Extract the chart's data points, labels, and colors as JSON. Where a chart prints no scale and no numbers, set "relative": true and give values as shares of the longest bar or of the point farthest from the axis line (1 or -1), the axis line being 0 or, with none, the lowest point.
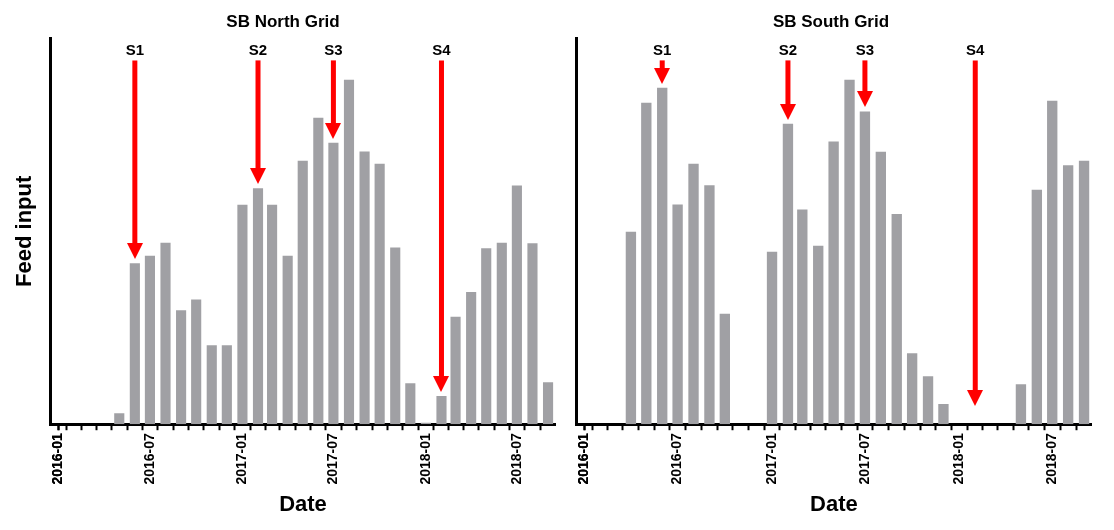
{
  "chart_data": [
    {
      "type": "bar",
      "title": "SB North Grid",
      "xlabel": "Date",
      "ylabel": "Feed input",
      "relative": true,
      "xlim": [
        "2015-12-16",
        "2018-09-16"
      ],
      "xticks": [
        "2016-01",
        "2016-07",
        "2017-01",
        "2017-07",
        "2018-01",
        "2018-07"
      ],
      "x": [
        "2016-05",
        "2016-06",
        "2016-07",
        "2016-08",
        "2016-09",
        "2016-10",
        "2016-11",
        "2016-12",
        "2017-01",
        "2017-02",
        "2017-03",
        "2017-04",
        "2017-05",
        "2017-06",
        "2017-07",
        "2017-08",
        "2017-09",
        "2017-10",
        "2017-11",
        "2017-12",
        "2018-01",
        "2018-02",
        "2018-03",
        "2018-04",
        "2018-05",
        "2018-06",
        "2018-07",
        "2018-08",
        "2018-09"
      ],
      "series": [
        {
          "color": "#a0a0a4",
          "values": [
            0.032,
            0.467,
            0.489,
            0.527,
            0.331,
            0.362,
            0.229,
            0.229,
            0.637,
            0.685,
            0.637,
            0.489,
            0.765,
            0.89,
            0.817,
            1,
            0.792,
            0.756,
            0.513,
            0.119,
            0.004,
            0.082,
            0.312,
            0.384,
            0.511,
            0.527,
            0.693,
            0.525,
            0.122
          ]
        }
      ],
      "ref_lines": [
        {
          "axis": "x",
          "value": "2016-06",
          "label": "S1",
          "color": "#ff0000"
        },
        {
          "axis": "x",
          "value": "2017-02",
          "label": "S2",
          "color": "#ff0000"
        },
        {
          "axis": "x",
          "value": "2017-07",
          "label": "S3",
          "color": "#ff0000"
        },
        {
          "axis": "x",
          "value": "2018-02",
          "label": "S4",
          "color": "#ff0000"
        }
      ]
    },
    {
      "type": "bar",
      "title": "SB South Grid",
      "xlabel": "Date",
      "relative": true,
      "xlim": [
        "2015-12-16",
        "2018-09-16"
      ],
      "xticks": [
        "2016-01",
        "2016-07",
        "2017-01",
        "2017-07",
        "2018-01",
        "2018-07"
      ],
      "x": [
        "2016-04",
        "2016-05",
        "2016-06",
        "2016-07",
        "2016-08",
        "2016-09",
        "2016-10",
        "2017-01",
        "2017-02",
        "2017-03",
        "2017-04",
        "2017-05",
        "2017-06",
        "2017-07",
        "2017-08",
        "2017-09",
        "2017-10",
        "2017-11",
        "2017-12",
        "2018-05",
        "2018-06",
        "2018-07",
        "2018-08",
        "2018-09"
      ],
      "series": [
        {
          "color": "#a0a0a4",
          "values": [
            0.559,
            0.933,
            0.977,
            0.638,
            0.756,
            0.694,
            0.321,
            0.501,
            0.872,
            0.623,
            0.518,
            0.821,
            1,
            0.908,
            0.791,
            0.61,
            0.206,
            0.139,
            0.059,
            0.116,
            0.681,
            0.939,
            0.752,
            0.765
          ]
        }
      ],
      "ref_lines": [
        {
          "axis": "x",
          "value": "2016-06",
          "label": "S1",
          "color": "#ff0000"
        },
        {
          "axis": "x",
          "value": "2017-02",
          "label": "S2",
          "color": "#ff0000"
        },
        {
          "axis": "x",
          "value": "2017-07",
          "label": "S3",
          "color": "#ff0000"
        },
        {
          "axis": "x",
          "value": "2018-02",
          "label": "S4",
          "color": "#ff0000"
        }
      ]
    }
  ]
}
